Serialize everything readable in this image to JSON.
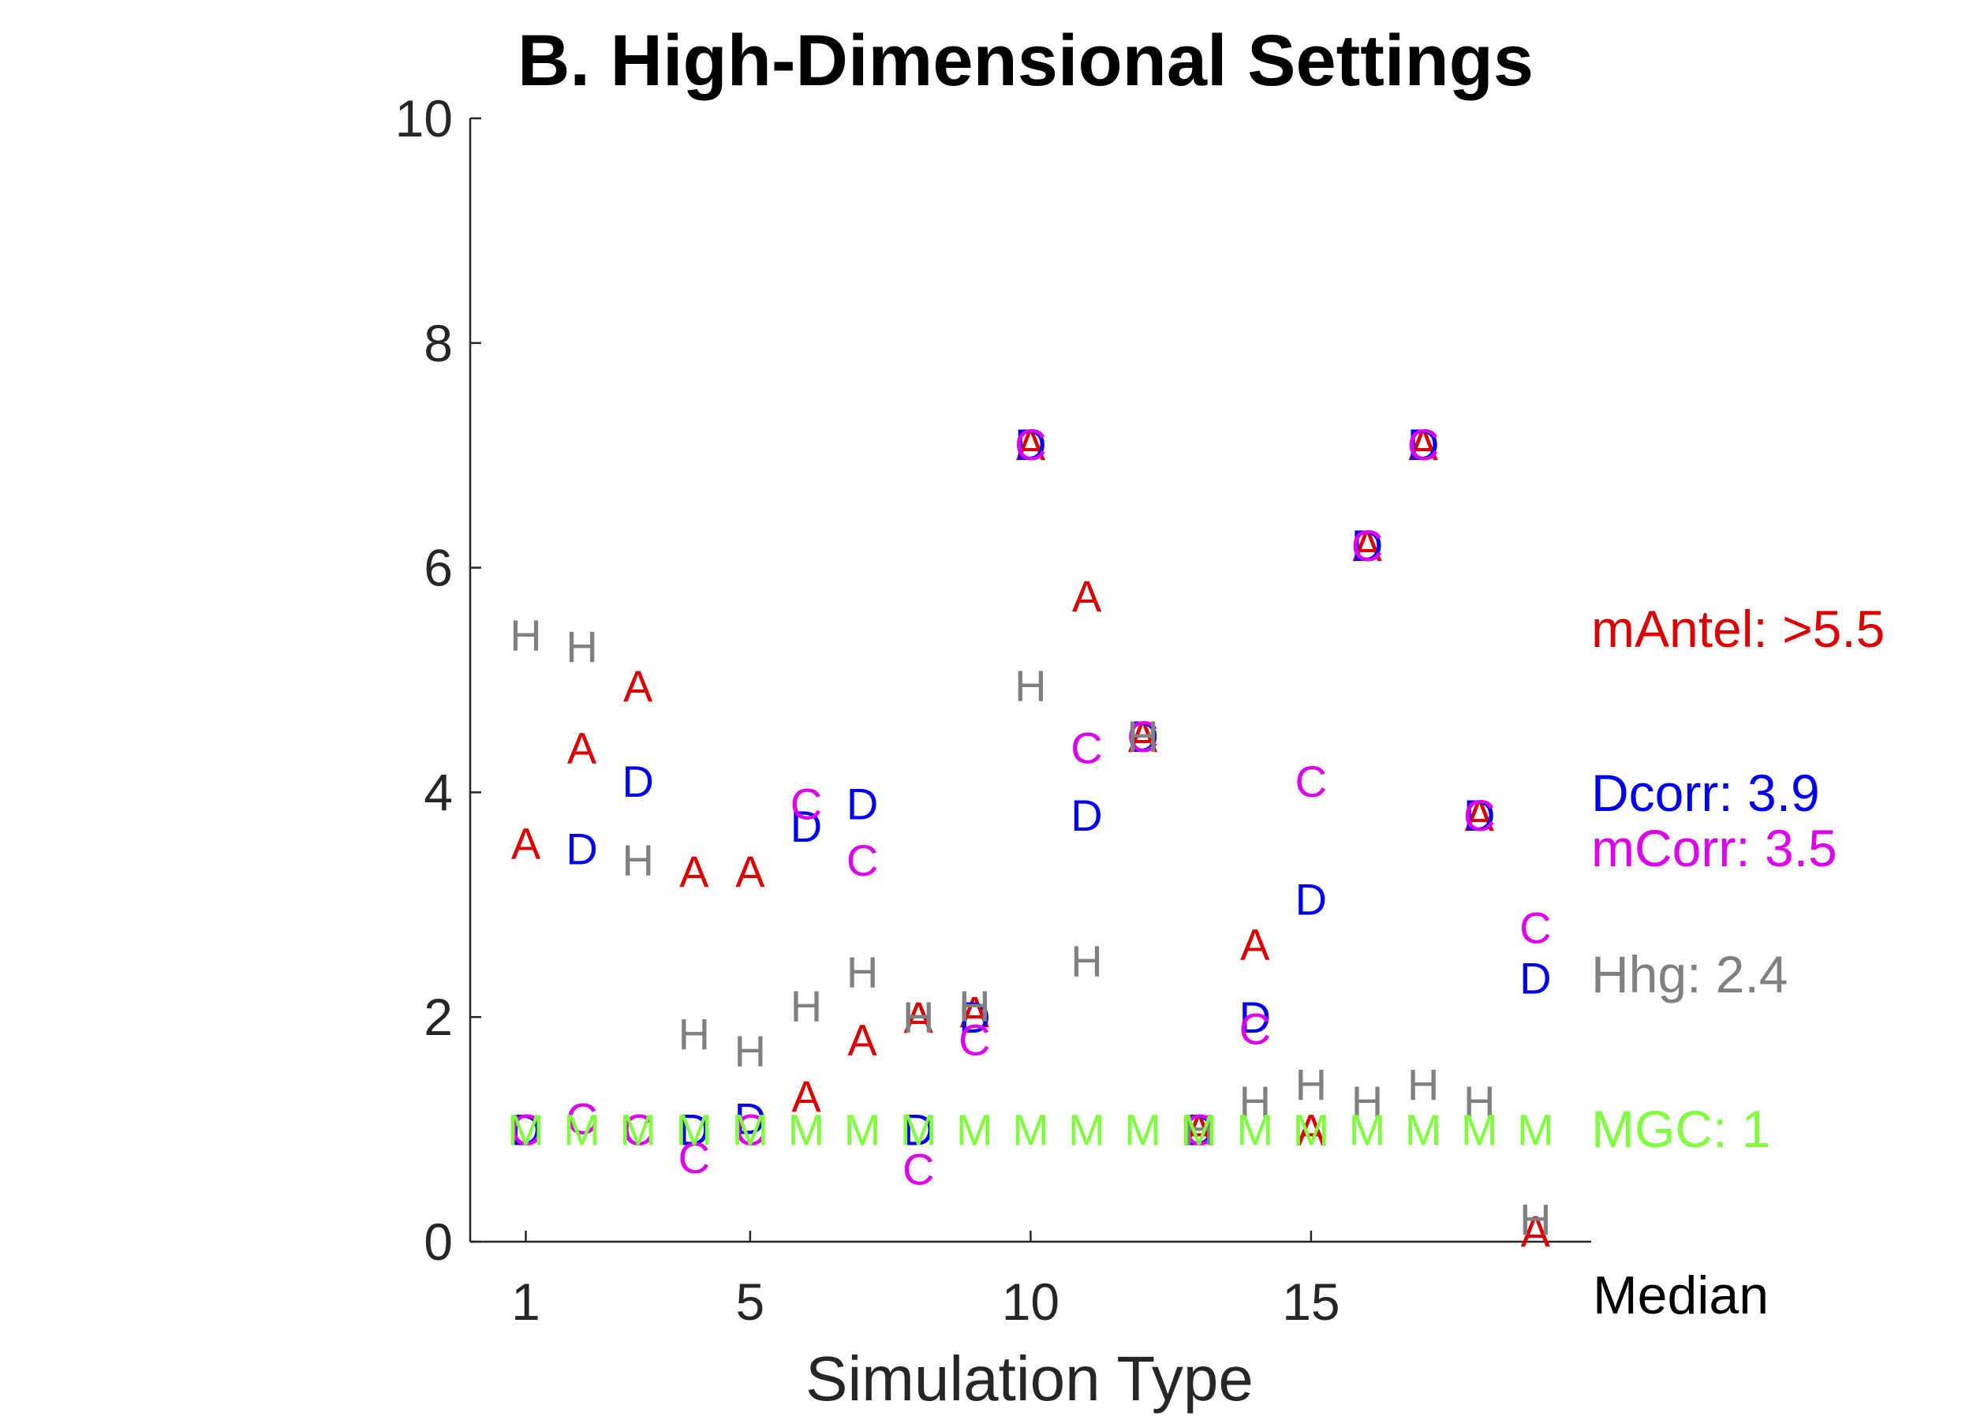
{
  "chart_data": {
    "type": "scatter",
    "title": "B. High-Dimensional Settings",
    "xlabel": "Simulation Type",
    "ylabel": "",
    "xlim": [
      0,
      19.5
    ],
    "ylim": [
      0,
      10
    ],
    "xticks": [
      1,
      5,
      10,
      15
    ],
    "yticks": [
      0,
      2,
      4,
      6,
      8,
      10
    ],
    "median_label": "Median",
    "series": [
      {
        "name": "mAntel",
        "marker": "A",
        "color": "#dd0000",
        "median_label": "mAntel: >5.5",
        "points": [
          {
            "x": 1,
            "y": 3.55
          },
          {
            "x": 2,
            "y": 4.4
          },
          {
            "x": 3,
            "y": 4.95
          },
          {
            "x": 4,
            "y": 3.3
          },
          {
            "x": 5,
            "y": 3.3
          },
          {
            "x": 6,
            "y": 1.3
          },
          {
            "x": 7,
            "y": 1.8
          },
          {
            "x": 8,
            "y": 2.0
          },
          {
            "x": 9,
            "y": 2.05
          },
          {
            "x": 10,
            "y": 7.1
          },
          {
            "x": 11,
            "y": 5.75
          },
          {
            "x": 12,
            "y": 4.5
          },
          {
            "x": 13,
            "y": 1.0
          },
          {
            "x": 14,
            "y": 2.65
          },
          {
            "x": 15,
            "y": 1.0
          },
          {
            "x": 16,
            "y": 6.2
          },
          {
            "x": 17,
            "y": 7.1
          },
          {
            "x": 18,
            "y": 3.8
          },
          {
            "x": 19,
            "y": 0.1
          }
        ]
      },
      {
        "name": "Dcorr",
        "marker": "D",
        "color": "#0000ee",
        "median_label": "Dcorr: 3.9",
        "points": [
          {
            "x": 1,
            "y": 1.0
          },
          {
            "x": 2,
            "y": 3.5
          },
          {
            "x": 3,
            "y": 4.1
          },
          {
            "x": 4,
            "y": 1.0
          },
          {
            "x": 5,
            "y": 1.1
          },
          {
            "x": 6,
            "y": 3.7
          },
          {
            "x": 7,
            "y": 3.9
          },
          {
            "x": 8,
            "y": 1.0
          },
          {
            "x": 9,
            "y": 2.0
          },
          {
            "x": 10,
            "y": 7.1
          },
          {
            "x": 11,
            "y": 3.8
          },
          {
            "x": 12,
            "y": 4.5
          },
          {
            "x": 13,
            "y": 1.0
          },
          {
            "x": 14,
            "y": 2.0
          },
          {
            "x": 15,
            "y": 3.05
          },
          {
            "x": 16,
            "y": 6.2
          },
          {
            "x": 17,
            "y": 7.1
          },
          {
            "x": 18,
            "y": 3.8
          },
          {
            "x": 19,
            "y": 2.35
          }
        ]
      },
      {
        "name": "mCorr",
        "marker": "C",
        "color": "#dd00ee",
        "median_label": "mCorr: 3.5",
        "points": [
          {
            "x": 1,
            "y": 1.0
          },
          {
            "x": 2,
            "y": 1.1
          },
          {
            "x": 3,
            "y": 1.0
          },
          {
            "x": 4,
            "y": 0.75
          },
          {
            "x": 5,
            "y": 1.0
          },
          {
            "x": 6,
            "y": 3.9
          },
          {
            "x": 7,
            "y": 3.4
          },
          {
            "x": 8,
            "y": 0.65
          },
          {
            "x": 9,
            "y": 1.8
          },
          {
            "x": 10,
            "y": 7.1
          },
          {
            "x": 11,
            "y": 4.4
          },
          {
            "x": 12,
            "y": 4.5
          },
          {
            "x": 13,
            "y": 1.0
          },
          {
            "x": 14,
            "y": 1.9
          },
          {
            "x": 15,
            "y": 4.1
          },
          {
            "x": 16,
            "y": 6.2
          },
          {
            "x": 17,
            "y": 7.1
          },
          {
            "x": 18,
            "y": 3.8
          },
          {
            "x": 19,
            "y": 2.8
          }
        ]
      },
      {
        "name": "Hhg",
        "marker": "H",
        "color": "#808080",
        "median_label": "Hhg: 2.4",
        "points": [
          {
            "x": 1,
            "y": 5.4
          },
          {
            "x": 2,
            "y": 5.3
          },
          {
            "x": 3,
            "y": 3.4
          },
          {
            "x": 4,
            "y": 1.85
          },
          {
            "x": 5,
            "y": 1.7
          },
          {
            "x": 6,
            "y": 2.1
          },
          {
            "x": 7,
            "y": 2.4
          },
          {
            "x": 8,
            "y": 2.0
          },
          {
            "x": 9,
            "y": 2.1
          },
          {
            "x": 10,
            "y": 4.95
          },
          {
            "x": 11,
            "y": 2.5
          },
          {
            "x": 12,
            "y": 4.5
          },
          {
            "x": 13,
            "y": 1.0
          },
          {
            "x": 14,
            "y": 1.25
          },
          {
            "x": 15,
            "y": 1.4
          },
          {
            "x": 16,
            "y": 1.25
          },
          {
            "x": 17,
            "y": 1.4
          },
          {
            "x": 18,
            "y": 1.25
          },
          {
            "x": 19,
            "y": 0.2
          }
        ]
      },
      {
        "name": "MGC",
        "marker": "M",
        "color": "#80ff40",
        "median_label": "MGC: 1",
        "points": [
          {
            "x": 1,
            "y": 1.0
          },
          {
            "x": 2,
            "y": 1.0
          },
          {
            "x": 3,
            "y": 1.0
          },
          {
            "x": 4,
            "y": 1.0
          },
          {
            "x": 5,
            "y": 1.0
          },
          {
            "x": 6,
            "y": 1.0
          },
          {
            "x": 7,
            "y": 1.0
          },
          {
            "x": 8,
            "y": 1.0
          },
          {
            "x": 9,
            "y": 1.0
          },
          {
            "x": 10,
            "y": 1.0
          },
          {
            "x": 11,
            "y": 1.0
          },
          {
            "x": 12,
            "y": 1.0
          },
          {
            "x": 13,
            "y": 1.0
          },
          {
            "x": 14,
            "y": 1.0
          },
          {
            "x": 15,
            "y": 1.0
          },
          {
            "x": 16,
            "y": 1.0
          },
          {
            "x": 17,
            "y": 1.0
          },
          {
            "x": 18,
            "y": 1.0
          },
          {
            "x": 19,
            "y": 1.0
          }
        ]
      }
    ],
    "median_values": {
      "mAntel": 5.5,
      "Dcorr": 3.9,
      "mCorr": 3.5,
      "Hhg": 2.4,
      "MGC": 1
    }
  }
}
